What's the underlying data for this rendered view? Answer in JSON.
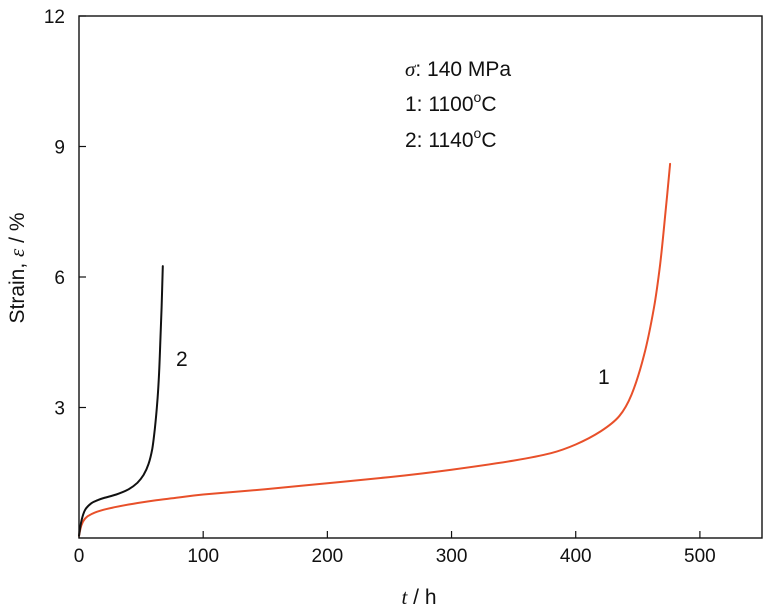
{
  "chart_data": {
    "type": "line",
    "title": "",
    "xlabel_symbol": "t",
    "xlabel_unit": " / h",
    "ylabel_text": "Strain, ",
    "ylabel_symbol": "ε",
    "ylabel_unit": " / %",
    "xlim": [
      0,
      550
    ],
    "ylim": [
      0,
      12
    ],
    "xticks": [
      0,
      100,
      200,
      300,
      400,
      500
    ],
    "yticks": [
      3,
      6,
      9,
      12
    ],
    "grid": false,
    "annotations": {
      "stress_symbol": "σ",
      "stress_text": ": 140 MPa",
      "line1_prefix": "1: 1100",
      "line1_sup": "o",
      "line1_suffix": "C",
      "line2_prefix": "2: 1140",
      "line2_sup": "o",
      "line2_suffix": "C"
    },
    "series": [
      {
        "label": "1",
        "color": "#e8502a",
        "points": [
          [
            0,
            0.05
          ],
          [
            2,
            0.3
          ],
          [
            5,
            0.45
          ],
          [
            10,
            0.55
          ],
          [
            20,
            0.65
          ],
          [
            40,
            0.77
          ],
          [
            60,
            0.86
          ],
          [
            80,
            0.93
          ],
          [
            100,
            1.0
          ],
          [
            150,
            1.12
          ],
          [
            200,
            1.26
          ],
          [
            250,
            1.4
          ],
          [
            300,
            1.57
          ],
          [
            350,
            1.78
          ],
          [
            380,
            1.95
          ],
          [
            400,
            2.15
          ],
          [
            420,
            2.45
          ],
          [
            435,
            2.8
          ],
          [
            445,
            3.3
          ],
          [
            455,
            4.2
          ],
          [
            463,
            5.3
          ],
          [
            468,
            6.3
          ],
          [
            472,
            7.4
          ],
          [
            476,
            8.6
          ]
        ]
      },
      {
        "label": "2",
        "color": "#111111",
        "points": [
          [
            0,
            0.05
          ],
          [
            2,
            0.4
          ],
          [
            5,
            0.65
          ],
          [
            10,
            0.8
          ],
          [
            15,
            0.87
          ],
          [
            20,
            0.92
          ],
          [
            30,
            1.0
          ],
          [
            40,
            1.12
          ],
          [
            47,
            1.27
          ],
          [
            52,
            1.45
          ],
          [
            56,
            1.7
          ],
          [
            59,
            2.05
          ],
          [
            61,
            2.5
          ],
          [
            63,
            3.1
          ],
          [
            64.5,
            3.8
          ],
          [
            65.5,
            4.5
          ],
          [
            66.5,
            5.3
          ],
          [
            67.5,
            6.25
          ]
        ]
      }
    ]
  }
}
